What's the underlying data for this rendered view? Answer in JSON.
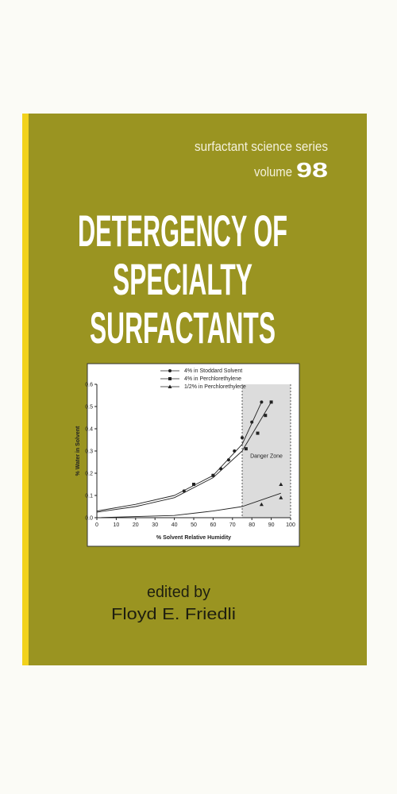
{
  "cover": {
    "series_name": "surfactant science series",
    "volume_word": "volume",
    "volume_number": "98",
    "title_lines": [
      "DETERGENCY OF",
      "SPECIALTY",
      "SURFACTANTS"
    ],
    "edited_by": "edited by",
    "editor": "Floyd E. Friedli"
  },
  "chart_data": {
    "type": "scatter",
    "x_label": "% Solvent Relative Humidity",
    "y_label": "% Water in Solvent",
    "xlim": [
      0,
      100
    ],
    "ylim": [
      0,
      0.6
    ],
    "xticks": [
      0,
      10,
      20,
      30,
      40,
      50,
      60,
      70,
      80,
      90,
      100
    ],
    "yticks": [
      {
        "value": 0,
        "label": "0.0"
      },
      0.1,
      0.2,
      0.3,
      0.4,
      0.5,
      0.6
    ],
    "danger_zone": {
      "label": "Danger Zone",
      "xlim": [
        75,
        100
      ]
    },
    "series": [
      {
        "name": "4% in Stoddard Solvent",
        "marker": "circle",
        "color": "#222222",
        "x": [
          45,
          60,
          64,
          68,
          71,
          75,
          80,
          85
        ],
        "values": [
          0.12,
          0.19,
          0.22,
          0.26,
          0.3,
          0.36,
          0.43,
          0.52
        ],
        "fit_x": [
          0,
          20,
          40,
          60,
          75,
          85
        ],
        "fit_values": [
          0.03,
          0.06,
          0.1,
          0.19,
          0.33,
          0.52
        ]
      },
      {
        "name": "4% in Perchlorethylene",
        "marker": "square",
        "color": "#222222",
        "x": [
          50,
          60,
          77,
          83,
          87,
          90
        ],
        "values": [
          0.15,
          0.19,
          0.31,
          0.38,
          0.46,
          0.52
        ],
        "fit_x": [
          0,
          20,
          40,
          60,
          75,
          90
        ],
        "fit_values": [
          0.025,
          0.05,
          0.09,
          0.18,
          0.3,
          0.52
        ]
      },
      {
        "name": "1/2% in Perchlorethylene",
        "marker": "triangle",
        "color": "#222222",
        "x": [
          85,
          95,
          95
        ],
        "values": [
          0.06,
          0.09,
          0.15
        ],
        "fit_x": [
          0,
          40,
          60,
          75,
          95
        ],
        "fit_values": [
          0,
          0.01,
          0.03,
          0.05,
          0.11
        ]
      }
    ]
  }
}
